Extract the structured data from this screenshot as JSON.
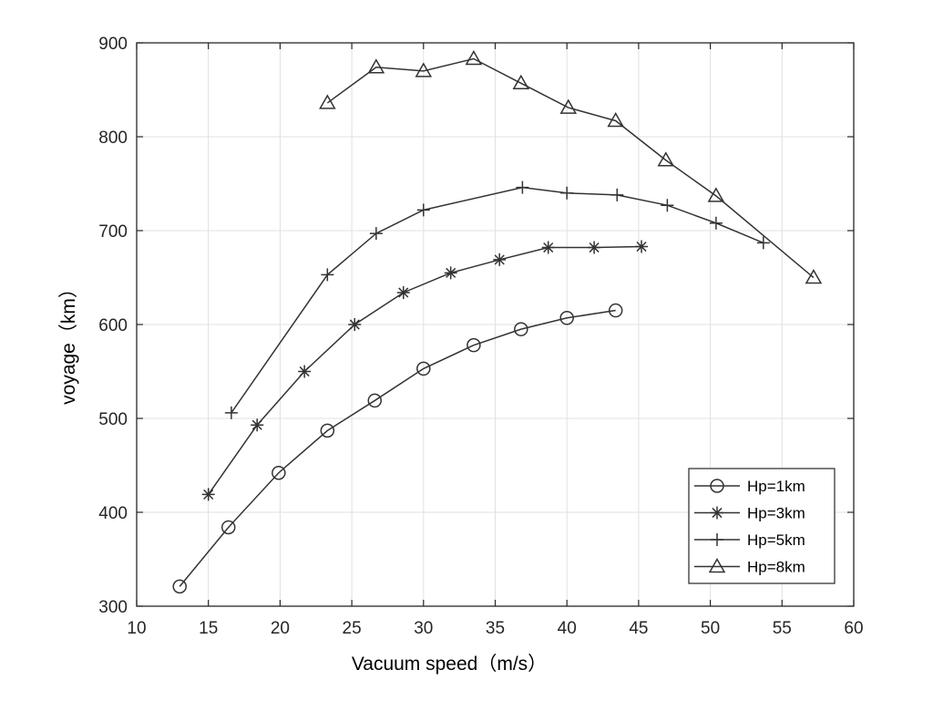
{
  "chart_data": {
    "type": "line",
    "title": "",
    "xlabel": "Vacuum speed（m/s）",
    "ylabel": "voyage（km）",
    "xlim": [
      10,
      60
    ],
    "ylim": [
      300,
      900
    ],
    "xticks": [
      10,
      15,
      20,
      25,
      30,
      35,
      40,
      45,
      50,
      55,
      60
    ],
    "yticks": [
      300,
      400,
      500,
      600,
      700,
      800,
      900
    ],
    "grid": true,
    "legend_position": "bottom-right",
    "colors": {
      "line": "#333333",
      "grid": "#e0e0e0",
      "axis": "#262626"
    },
    "series": [
      {
        "name": "Hp=1km",
        "marker": "circle",
        "x": [
          13.0,
          16.4,
          19.9,
          23.3,
          26.6,
          30.0,
          33.5,
          36.8,
          40.0,
          43.4
        ],
        "y": [
          321,
          384,
          442,
          487,
          519,
          553,
          578,
          595,
          607,
          615
        ]
      },
      {
        "name": "Hp=3km",
        "marker": "asterisk",
        "x": [
          15.0,
          18.4,
          21.7,
          25.2,
          28.6,
          31.9,
          35.3,
          38.7,
          41.9,
          45.2
        ],
        "y": [
          419,
          493,
          550,
          600,
          634,
          655,
          669,
          682,
          682,
          683
        ]
      },
      {
        "name": "Hp=5km",
        "marker": "plus",
        "x": [
          16.6,
          23.3,
          26.7,
          30.0,
          36.9,
          40.0,
          43.5,
          47.0,
          50.4,
          53.7
        ],
        "y": [
          506,
          653,
          697,
          722,
          746,
          740,
          738,
          727,
          708,
          687
        ]
      },
      {
        "name": "Hp=8km",
        "marker": "triangle",
        "x": [
          23.3,
          26.7,
          30.0,
          33.5,
          36.8,
          40.1,
          43.4,
          46.9,
          50.4,
          57.2
        ],
        "y": [
          836,
          874,
          870,
          883,
          857,
          831,
          817,
          775,
          737,
          650
        ]
      }
    ]
  }
}
